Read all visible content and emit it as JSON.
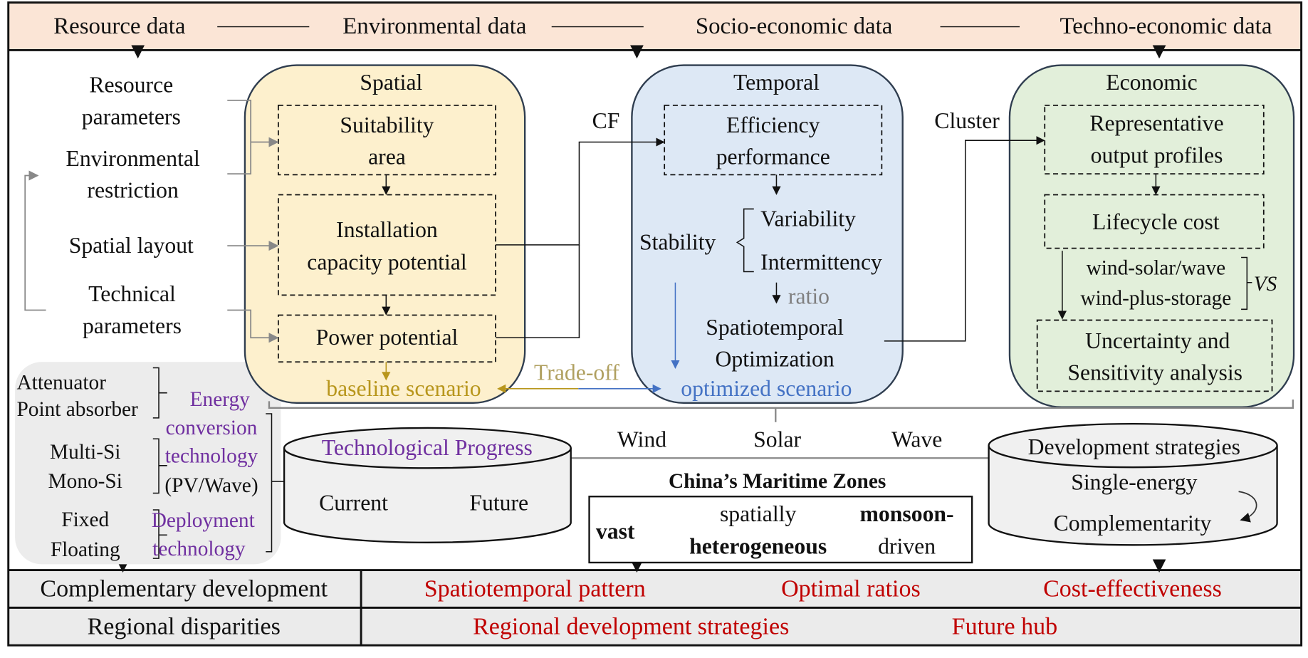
{
  "header": {
    "items": [
      "Resource data",
      "Environmental data",
      "Socio-economic data",
      "Techno-economic data"
    ]
  },
  "inputs": {
    "resource_parameters": [
      "Resource",
      "parameters"
    ],
    "environmental_restriction": [
      "Environmental",
      "restriction"
    ],
    "spatial_layout": "Spatial layout",
    "technical_parameters": [
      "Technical",
      "parameters"
    ]
  },
  "spatial": {
    "title": "Spatial",
    "suitability": [
      "Suitability",
      "area"
    ],
    "installation": [
      "Installation",
      "capacity potential"
    ],
    "power": "Power potential",
    "baseline": "baseline scenario"
  },
  "links": {
    "cf": "CF",
    "cluster": "Cluster",
    "tradeoff": "Trade-off"
  },
  "temporal": {
    "title": "Temporal",
    "efficiency": [
      "Efficiency",
      "performance"
    ],
    "stability": "Stability",
    "variability": "Variability",
    "intermittency": "Intermittency",
    "ratio": "ratio",
    "optimization": [
      "Spatiotemporal",
      "Optimization"
    ],
    "optimized": "optimized scenario"
  },
  "economic": {
    "title": "Economic",
    "profiles": [
      "Representative",
      "output profiles"
    ],
    "lifecycle": "Lifecycle cost",
    "wind_solar": "wind-solar/wave",
    "wind_storage": "wind-plus-storage",
    "vs": "VS",
    "uncertainty": [
      "Uncertainty and",
      "Sensitivity analysis"
    ]
  },
  "technology": {
    "attenuator": "Attenuator",
    "point_absorber": "Point absorber",
    "energy_conversion": [
      "Energy",
      "conversion",
      "technology"
    ],
    "pv_wave": "(PV/Wave)",
    "multi_si": "Multi-Si",
    "mono_si": "Mono-Si",
    "fixed": "Fixed",
    "floating": "Floating",
    "deployment": [
      "Deployment",
      "technology"
    ]
  },
  "progress": {
    "title": "Technological Progress",
    "current": "Current",
    "future": "Future"
  },
  "energies": [
    "Wind",
    "Solar",
    "Wave"
  ],
  "maritime": {
    "title": "China’s Maritime Zones",
    "vast": "vast",
    "spatially": "spatially",
    "heterogeneous": "heterogeneous",
    "monsoon": "monsoon-",
    "driven": "driven"
  },
  "strategies": {
    "title": "Development strategies",
    "single": "Single-energy",
    "complementarity": "Complementarity"
  },
  "results": {
    "row1": {
      "label": "Complementary development",
      "items": [
        "Spatiotemporal pattern",
        "Optimal ratios",
        "Cost-effectiveness"
      ]
    },
    "row2": {
      "label": "Regional disparities",
      "items": [
        "Regional development strategies",
        "Future hub"
      ]
    }
  },
  "colors": {
    "header_bg": "#fbe5d6",
    "spatial_bg": "#fdf0cd",
    "temporal_bg": "#dde8f5",
    "economic_bg": "#e2efda",
    "purple": "#7030a0",
    "red": "#c00000",
    "gold": "#b8961c",
    "blue": "#4472c4"
  }
}
